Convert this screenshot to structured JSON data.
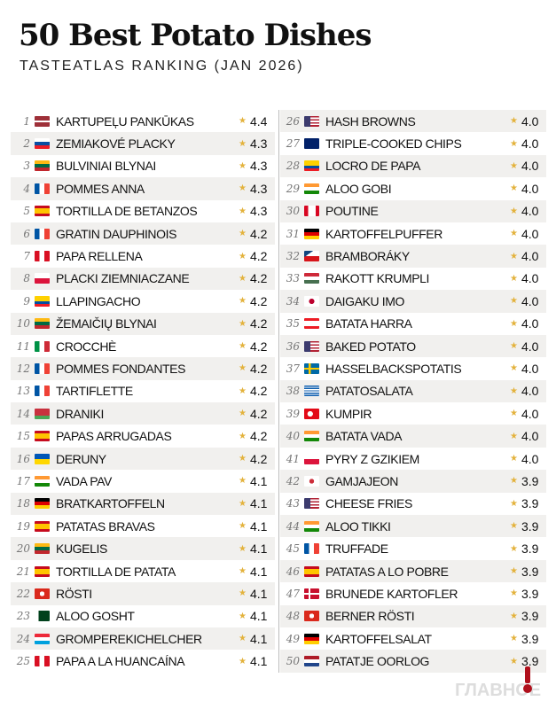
{
  "header": {
    "title": "50 Best Potato Dishes",
    "subtitle": "TASTEATLAS RANKING (JAN 2026)"
  },
  "colors": {
    "star": "#e3b23c",
    "row_alt": "#f1f0ee",
    "logo_accent": "#b0101c"
  },
  "watermark": "ГЛАВНОЕ",
  "dishes": [
    {
      "rank": "1",
      "country": "LV",
      "name": "KARTUPEĻU PANKŪKAS",
      "score": "4.4"
    },
    {
      "rank": "2",
      "country": "SK",
      "name": "ZEMIAKOVÉ PLACKY",
      "score": "4.3"
    },
    {
      "rank": "3",
      "country": "LT",
      "name": "BULVINIAI BLYNAI",
      "score": "4.3"
    },
    {
      "rank": "4",
      "country": "FR",
      "name": "POMMES ANNA",
      "score": "4.3"
    },
    {
      "rank": "5",
      "country": "ES",
      "name": "TORTILLA DE BETANZOS",
      "score": "4.3"
    },
    {
      "rank": "6",
      "country": "FR",
      "name": "GRATIN DAUPHINOIS",
      "score": "4.2"
    },
    {
      "rank": "7",
      "country": "PE",
      "name": "PAPA RELLENA",
      "score": "4.2"
    },
    {
      "rank": "8",
      "country": "PL",
      "name": "PLACKI ZIEMNIACZANE",
      "score": "4.2"
    },
    {
      "rank": "9",
      "country": "EC",
      "name": "LLAPINGACHO",
      "score": "4.2"
    },
    {
      "rank": "10",
      "country": "LT",
      "name": "ŽEMAIČIŲ BLYNAI",
      "score": "4.2"
    },
    {
      "rank": "11",
      "country": "IT",
      "name": "CROCCHÈ",
      "score": "4.2"
    },
    {
      "rank": "12",
      "country": "FR",
      "name": "POMMES FONDANTES",
      "score": "4.2"
    },
    {
      "rank": "13",
      "country": "FR",
      "name": "TARTIFLETTE",
      "score": "4.2"
    },
    {
      "rank": "14",
      "country": "BY",
      "name": "DRANIKI",
      "score": "4.2"
    },
    {
      "rank": "15",
      "country": "ES",
      "name": "PAPAS ARRUGADAS",
      "score": "4.2"
    },
    {
      "rank": "16",
      "country": "UA",
      "name": "DERUNY",
      "score": "4.2"
    },
    {
      "rank": "17",
      "country": "IN",
      "name": "VADA PAV",
      "score": "4.1"
    },
    {
      "rank": "18",
      "country": "DE",
      "name": "BRATKARTOFFELN",
      "score": "4.1"
    },
    {
      "rank": "19",
      "country": "ES",
      "name": "PATATAS BRAVAS",
      "score": "4.1"
    },
    {
      "rank": "20",
      "country": "LT",
      "name": "KUGELIS",
      "score": "4.1"
    },
    {
      "rank": "21",
      "country": "ES",
      "name": "TORTILLA DE PATATA",
      "score": "4.1"
    },
    {
      "rank": "22",
      "country": "CH",
      "name": "RÖSTI",
      "score": "4.1"
    },
    {
      "rank": "23",
      "country": "PK",
      "name": "ALOO GOSHT",
      "score": "4.1"
    },
    {
      "rank": "24",
      "country": "LU",
      "name": "GROMPEREKICHELCHER",
      "score": "4.1"
    },
    {
      "rank": "25",
      "country": "PE",
      "name": "PAPA A LA HUANCAÍNA",
      "score": "4.1"
    },
    {
      "rank": "26",
      "country": "US",
      "name": "HASH BROWNS",
      "score": "4.0"
    },
    {
      "rank": "27",
      "country": "GB",
      "name": "TRIPLE-COOKED CHIPS",
      "score": "4.0"
    },
    {
      "rank": "28",
      "country": "EC",
      "name": "LOCRO DE PAPA",
      "score": "4.0"
    },
    {
      "rank": "29",
      "country": "IN",
      "name": "ALOO GOBI",
      "score": "4.0"
    },
    {
      "rank": "30",
      "country": "CA",
      "name": "POUTINE",
      "score": "4.0"
    },
    {
      "rank": "31",
      "country": "DE",
      "name": "KARTOFFELPUFFER",
      "score": "4.0"
    },
    {
      "rank": "32",
      "country": "CZ",
      "name": "BRAMBORÁKY",
      "score": "4.0"
    },
    {
      "rank": "33",
      "country": "HU",
      "name": "RAKOTT KRUMPLI",
      "score": "4.0"
    },
    {
      "rank": "34",
      "country": "JP",
      "name": "DAIGAKU IMO",
      "score": "4.0"
    },
    {
      "rank": "35",
      "country": "LB",
      "name": "BATATA HARRA",
      "score": "4.0"
    },
    {
      "rank": "36",
      "country": "US",
      "name": "BAKED POTATO",
      "score": "4.0"
    },
    {
      "rank": "37",
      "country": "SE",
      "name": "HASSELBACKSPOTATIS",
      "score": "4.0"
    },
    {
      "rank": "38",
      "country": "GR",
      "name": "PATATOSALATA",
      "score": "4.0"
    },
    {
      "rank": "39",
      "country": "TR",
      "name": "KUMPIR",
      "score": "4.0"
    },
    {
      "rank": "40",
      "country": "IN",
      "name": "BATATA VADA",
      "score": "4.0"
    },
    {
      "rank": "41",
      "country": "PL",
      "name": "PYRY Z GZIKIEM",
      "score": "4.0"
    },
    {
      "rank": "42",
      "country": "KR",
      "name": "GAMJAJEON",
      "score": "3.9"
    },
    {
      "rank": "43",
      "country": "US",
      "name": "CHEESE FRIES",
      "score": "3.9"
    },
    {
      "rank": "44",
      "country": "IN",
      "name": "ALOO TIKKI",
      "score": "3.9"
    },
    {
      "rank": "45",
      "country": "FR",
      "name": "TRUFFADE",
      "score": "3.9"
    },
    {
      "rank": "46",
      "country": "ES",
      "name": "PATATAS A LO POBRE",
      "score": "3.9"
    },
    {
      "rank": "47",
      "country": "DK",
      "name": "BRUNEDE KARTOFLER",
      "score": "3.9"
    },
    {
      "rank": "48",
      "country": "CH",
      "name": "BERNER RÖSTI",
      "score": "3.9"
    },
    {
      "rank": "49",
      "country": "DE",
      "name": "KARTOFFELSALAT",
      "score": "3.9"
    },
    {
      "rank": "50",
      "country": "NL",
      "name": "PATATJE OORLOG",
      "score": "3.9"
    }
  ]
}
